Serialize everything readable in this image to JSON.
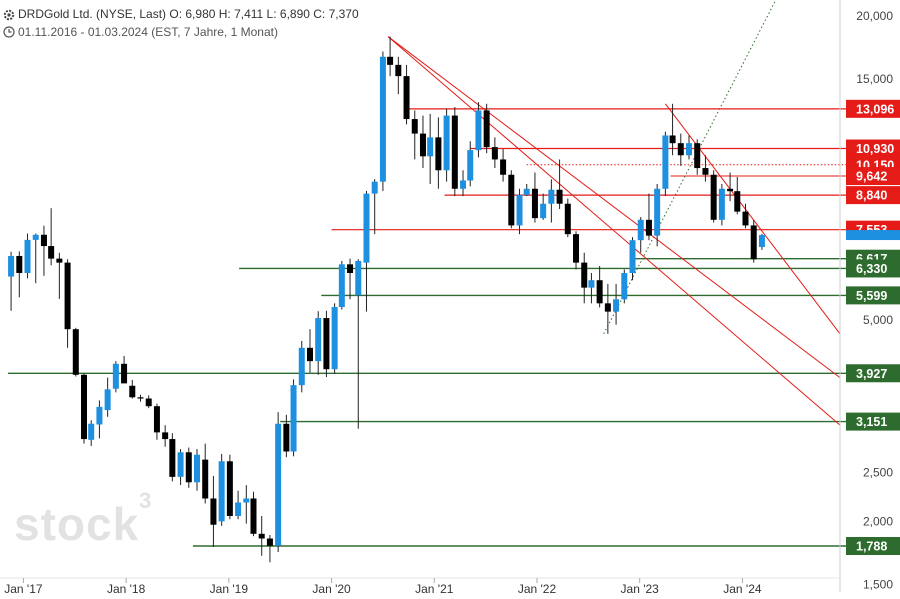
{
  "header": {
    "line1": "DRDGold Ltd. (NYSE, Last)  O: 6,980  H: 7,411  L: 6,890  C: 7,370",
    "line2": "01.11.2016 - 01.03.2024   (EST, 7 Jahre, 1 Monat)"
  },
  "watermark": {
    "text": "stock",
    "sup": "3"
  },
  "chart_data": {
    "type": "candlestick",
    "y_scale": "log",
    "ylim": [
      1.45,
      21.5
    ],
    "x_ticks": [
      {
        "label": "Jan '17",
        "t": 2017.0
      },
      {
        "label": "Jan '18",
        "t": 2018.0
      },
      {
        "label": "Jan '19",
        "t": 2019.0
      },
      {
        "label": "Jan '20",
        "t": 2020.0
      },
      {
        "label": "Jan '21",
        "t": 2021.0
      },
      {
        "label": "Jan '22",
        "t": 2022.0
      },
      {
        "label": "Jan '23",
        "t": 2023.0
      },
      {
        "label": "Jan '24",
        "t": 2024.0
      }
    ],
    "y_ticks": [
      {
        "label": "20,000",
        "v": 20
      },
      {
        "label": "15,000",
        "v": 15
      },
      {
        "label": "5,000",
        "v": 5
      },
      {
        "label": "2,500",
        "v": 2.5
      },
      {
        "label": "2,000",
        "v": 2
      },
      {
        "label": "1,500",
        "v": 1.5
      }
    ],
    "colors": {
      "up": "#1e90e0",
      "down": "#000000",
      "resistance": "#e41b17",
      "support": "#2e6b2e"
    },
    "levels": [
      {
        "label": "13,096",
        "v": 13.096,
        "kind": "resistance",
        "from": 2020.75,
        "lw": 1.2
      },
      {
        "label": "10,930",
        "v": 10.93,
        "kind": "resistance",
        "from": 2021.35,
        "lw": 1.2
      },
      {
        "label": "10,150",
        "v": 10.15,
        "kind": "resistance-dotted",
        "from": 2021.9,
        "lw": 1.0
      },
      {
        "label": "9,642",
        "v": 9.642,
        "kind": "resistance",
        "from": 2023.3,
        "lw": 1.0
      },
      {
        "label": "8,840",
        "v": 8.84,
        "kind": "resistance",
        "from": 2021.1,
        "lw": 1.2
      },
      {
        "label": "7,553",
        "v": 7.553,
        "kind": "resistance",
        "from": 2020.0,
        "lw": 1.2
      },
      {
        "label": "6,617",
        "v": 6.617,
        "kind": "support",
        "from": 2022.9,
        "lw": 1.4
      },
      {
        "label": "6,330",
        "v": 6.33,
        "kind": "support",
        "from": 2019.1,
        "lw": 1.4
      },
      {
        "label": "5,599",
        "v": 5.599,
        "kind": "support",
        "from": 2019.9,
        "lw": 1.4
      },
      {
        "label": "3,927",
        "v": 3.927,
        "kind": "support",
        "from": 2016.85,
        "lw": 1.4
      },
      {
        "label": "3,151",
        "v": 3.151,
        "kind": "support",
        "from": 2019.5,
        "lw": 1.4
      },
      {
        "label": "1,788",
        "v": 1.788,
        "kind": "support",
        "from": 2018.65,
        "lw": 1.4
      }
    ],
    "current_price": 7.37,
    "trendlines": [
      {
        "t1": 2020.55,
        "v1": 18.2,
        "t2": 2024.95,
        "v2": 3.1,
        "kind": "resistance"
      },
      {
        "t1": 2020.55,
        "v1": 18.2,
        "t2": 2024.95,
        "v2": 3.85,
        "kind": "resistance"
      },
      {
        "t1": 2023.25,
        "v1": 13.4,
        "t2": 2024.95,
        "v2": 4.7,
        "kind": "resistance"
      },
      {
        "t1": 2022.65,
        "v1": 4.7,
        "t2": 2024.35,
        "v2": 22.0,
        "kind": "support-dotted"
      }
    ],
    "candles": [
      [
        2016.88,
        6.1,
        6.83,
        5.22,
        6.7
      ],
      [
        2016.96,
        6.7,
        6.84,
        5.55,
        6.2
      ],
      [
        2017.04,
        6.2,
        7.42,
        6.05,
        7.21
      ],
      [
        2017.12,
        7.21,
        7.42,
        5.92,
        7.38
      ],
      [
        2017.2,
        7.38,
        7.69,
        6.12,
        7.01
      ],
      [
        2017.27,
        7.01,
        8.33,
        6.42,
        6.62
      ],
      [
        2017.35,
        6.62,
        6.8,
        5.51,
        6.5
      ],
      [
        2017.43,
        6.5,
        6.6,
        4.41,
        4.8
      ],
      [
        2017.51,
        4.8,
        4.83,
        3.87,
        3.9
      ],
      [
        2017.59,
        3.9,
        3.92,
        2.85,
        2.91
      ],
      [
        2017.66,
        2.9,
        3.17,
        2.82,
        3.12
      ],
      [
        2017.74,
        3.11,
        3.47,
        2.92,
        3.37
      ],
      [
        2017.82,
        3.32,
        3.85,
        3.22,
        3.65
      ],
      [
        2017.9,
        3.66,
        4.15,
        3.6,
        4.1
      ],
      [
        2017.98,
        4.1,
        4.25,
        3.9,
        3.75
      ],
      [
        2018.06,
        3.71,
        3.81,
        3.5,
        3.52
      ],
      [
        2018.14,
        3.52,
        3.56,
        3.45,
        3.5
      ],
      [
        2018.22,
        3.5,
        3.55,
        3.35,
        3.38
      ],
      [
        2018.3,
        3.38,
        3.42,
        2.9,
        3.0
      ],
      [
        2018.38,
        3.0,
        3.1,
        2.81,
        2.91
      ],
      [
        2018.45,
        2.91,
        2.99,
        2.4,
        2.45
      ],
      [
        2018.53,
        2.45,
        2.78,
        2.36,
        2.74
      ],
      [
        2018.61,
        2.74,
        2.8,
        2.33,
        2.39
      ],
      [
        2018.69,
        2.39,
        2.78,
        2.3,
        2.71
      ],
      [
        2018.77,
        2.65,
        2.85,
        2.17,
        2.22
      ],
      [
        2018.85,
        2.22,
        2.46,
        1.78,
        1.97
      ],
      [
        2018.93,
        2.0,
        2.72,
        1.96,
        2.63
      ],
      [
        2019.01,
        2.63,
        2.71,
        2.02,
        2.05
      ],
      [
        2019.09,
        2.05,
        2.3,
        2.02,
        2.18
      ],
      [
        2019.17,
        2.18,
        2.36,
        1.98,
        2.22
      ],
      [
        2019.24,
        2.22,
        2.29,
        1.87,
        1.89
      ],
      [
        2019.32,
        1.89,
        2.05,
        1.71,
        1.85
      ],
      [
        2019.4,
        1.85,
        1.88,
        1.66,
        1.79
      ],
      [
        2019.48,
        1.79,
        3.29,
        1.74,
        3.12
      ],
      [
        2019.56,
        3.12,
        3.25,
        2.68,
        2.75
      ],
      [
        2019.63,
        2.75,
        3.82,
        2.69,
        3.72
      ],
      [
        2019.71,
        3.72,
        4.55,
        3.6,
        4.41
      ],
      [
        2019.79,
        4.41,
        4.8,
        3.94,
        4.15
      ],
      [
        2019.87,
        4.15,
        5.21,
        3.9,
        5.05
      ],
      [
        2019.95,
        5.05,
        5.22,
        3.86,
        4.0
      ],
      [
        2020.03,
        4.0,
        5.4,
        3.92,
        5.31
      ],
      [
        2020.1,
        5.31,
        6.55,
        5.25,
        6.45
      ],
      [
        2020.18,
        6.45,
        6.62,
        5.5,
        6.2
      ],
      [
        2020.26,
        5.6,
        6.6,
        3.05,
        6.55
      ],
      [
        2020.34,
        6.5,
        9.01,
        5.2,
        8.9
      ],
      [
        2020.42,
        8.9,
        9.51,
        7.4,
        9.4
      ],
      [
        2020.5,
        9.4,
        17.0,
        9.0,
        16.6
      ],
      [
        2020.57,
        16.6,
        18.2,
        15.2,
        16.0
      ],
      [
        2020.65,
        16.0,
        16.6,
        14.0,
        15.2
      ],
      [
        2020.73,
        15.2,
        16.0,
        12.2,
        12.5
      ],
      [
        2020.81,
        12.5,
        13.0,
        10.4,
        11.7
      ],
      [
        2020.89,
        11.7,
        12.7,
        10.0,
        10.55
      ],
      [
        2020.96,
        10.55,
        12.8,
        9.3,
        11.5
      ],
      [
        2021.04,
        11.5,
        12.6,
        9.1,
        9.9
      ],
      [
        2021.12,
        9.9,
        13.1,
        9.4,
        12.7
      ],
      [
        2021.2,
        12.7,
        13.2,
        8.8,
        9.1
      ],
      [
        2021.28,
        9.1,
        9.9,
        8.8,
        9.45
      ],
      [
        2021.35,
        9.45,
        11.3,
        9.2,
        10.85
      ],
      [
        2021.43,
        10.85,
        13.5,
        10.5,
        13.0
      ],
      [
        2021.51,
        13.0,
        13.4,
        10.7,
        11.0
      ],
      [
        2021.59,
        11.0,
        11.5,
        10.0,
        10.4
      ],
      [
        2021.67,
        10.4,
        10.9,
        9.4,
        9.7
      ],
      [
        2021.75,
        9.7,
        9.9,
        7.6,
        7.7
      ],
      [
        2021.83,
        7.7,
        9.1,
        7.4,
        8.85
      ],
      [
        2021.9,
        8.85,
        9.3,
        8.8,
        9.1
      ],
      [
        2021.98,
        9.1,
        9.8,
        7.8,
        7.96
      ],
      [
        2022.06,
        7.96,
        8.9,
        7.9,
        8.5
      ],
      [
        2022.14,
        8.5,
        9.5,
        7.8,
        9.06
      ],
      [
        2022.22,
        9.06,
        10.4,
        8.3,
        8.5
      ],
      [
        2022.3,
        8.5,
        8.7,
        7.3,
        7.4
      ],
      [
        2022.38,
        7.4,
        7.5,
        6.3,
        6.5
      ],
      [
        2022.46,
        6.5,
        6.8,
        5.4,
        5.8
      ],
      [
        2022.53,
        5.8,
        6.2,
        5.4,
        6.0
      ],
      [
        2022.61,
        6.0,
        6.4,
        5.3,
        5.4
      ],
      [
        2022.69,
        5.4,
        5.9,
        4.7,
        5.2
      ],
      [
        2022.77,
        5.2,
        5.9,
        4.9,
        5.5
      ],
      [
        2022.85,
        5.5,
        6.3,
        5.4,
        6.2
      ],
      [
        2022.93,
        6.2,
        7.3,
        6.0,
        7.2
      ],
      [
        2023.01,
        7.2,
        8.0,
        6.8,
        7.9
      ],
      [
        2023.09,
        7.9,
        8.9,
        7.2,
        7.35
      ],
      [
        2023.17,
        7.35,
        9.3,
        7.0,
        9.1
      ],
      [
        2023.25,
        9.1,
        11.8,
        8.8,
        11.6
      ],
      [
        2023.32,
        11.6,
        13.4,
        10.6,
        11.2
      ],
      [
        2023.4,
        11.2,
        11.7,
        10.1,
        10.6
      ],
      [
        2023.48,
        10.6,
        11.6,
        10.4,
        11.2
      ],
      [
        2023.56,
        11.2,
        11.4,
        9.7,
        10.0
      ],
      [
        2023.64,
        10.0,
        10.6,
        9.4,
        9.7
      ],
      [
        2023.72,
        9.7,
        9.9,
        7.8,
        7.9
      ],
      [
        2023.8,
        7.9,
        9.3,
        7.7,
        9.1
      ],
      [
        2023.88,
        9.1,
        9.8,
        8.6,
        9.0
      ],
      [
        2023.95,
        9.0,
        9.6,
        8.1,
        8.2
      ],
      [
        2024.03,
        8.2,
        8.5,
        7.6,
        7.7
      ],
      [
        2024.11,
        7.7,
        7.9,
        6.5,
        6.6
      ],
      [
        2024.19,
        6.98,
        7.41,
        6.89,
        7.37
      ]
    ]
  }
}
